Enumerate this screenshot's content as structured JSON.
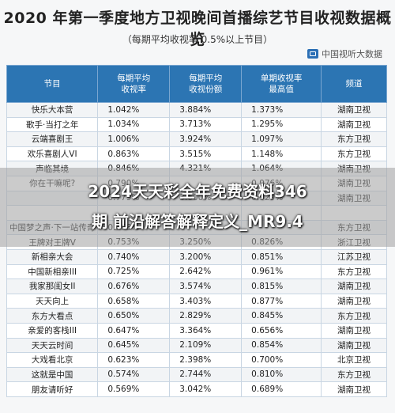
{
  "title": "2020 年第一季度地方卫视晚间首播综艺节目收视数据概览",
  "subtitle": "（每期平均收视率 0.5%以上节目）",
  "source": "中国视听大数据",
  "table": {
    "headers": [
      "节目",
      "每期平均收视率",
      "每期平均收视份额",
      "单期收视率最高值",
      "频道"
    ],
    "rows": [
      [
        "快乐大本营",
        "1.042%",
        "3.884%",
        "1.373%",
        "湖南卫视"
      ],
      [
        "歌手·当打之年",
        "1.034%",
        "3.713%",
        "1.295%",
        "湖南卫视"
      ],
      [
        "云端喜剧王",
        "1.006%",
        "3.924%",
        "1.097%",
        "东方卫视"
      ],
      [
        "欢乐喜剧人VI",
        "0.863%",
        "3.515%",
        "1.148%",
        "东方卫视"
      ],
      [
        "声临其境",
        "0.846%",
        "4.321%",
        "1.064%",
        "湖南卫视"
      ],
      [
        "你在干嘛呢?",
        "0.790%",
        "",
        "0.976%",
        "湖南卫视"
      ],
      [
        "",
        "0.779%",
        "3.600%",
        "0.929%",
        "湖南卫视"
      ],
      [
        "",
        "",
        "",
        "",
        ""
      ],
      [
        "中国梦之声·下一站传奇",
        "0.758%",
        "",
        "",
        "东方卫视"
      ],
      [
        "王牌对王牌V",
        "0.753%",
        "3.250%",
        "0.826%",
        "浙江卫视"
      ],
      [
        "新相亲大会",
        "0.740%",
        "3.200%",
        "0.851%",
        "江苏卫视"
      ],
      [
        "中国新相亲III",
        "0.725%",
        "2.642%",
        "0.961%",
        "东方卫视"
      ],
      [
        "我家那闺女II",
        "0.676%",
        "3.574%",
        "0.815%",
        "湖南卫视"
      ],
      [
        "天天向上",
        "0.658%",
        "3.403%",
        "0.877%",
        "湖南卫视"
      ],
      [
        "东方大看点",
        "0.650%",
        "2.829%",
        "0.845%",
        "东方卫视"
      ],
      [
        "亲爱的客栈III",
        "0.647%",
        "3.364%",
        "0.656%",
        "湖南卫视"
      ],
      [
        "天天云时间",
        "0.645%",
        "2.109%",
        "0.854%",
        "湖南卫视"
      ],
      [
        "大戏看北京",
        "0.623%",
        "2.398%",
        "0.700%",
        "北京卫视"
      ],
      [
        "这就是中国",
        "0.574%",
        "2.744%",
        "0.810%",
        "东方卫视"
      ],
      [
        "朋友请听好",
        "0.569%",
        "3.042%",
        "0.689%",
        "湖南卫视"
      ]
    ]
  },
  "overlay": {
    "line1": "2024天天彩全年免费资料346",
    "line2": "期 前沿解答解释定义_MR9.4"
  }
}
